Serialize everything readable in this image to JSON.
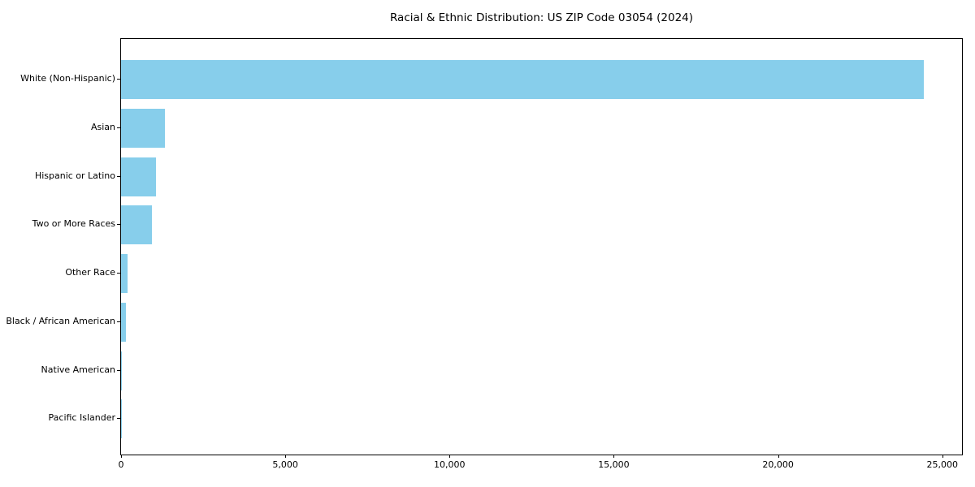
{
  "title": "Racial & Ethnic Distribution: US ZIP Code 03054 (2024)",
  "chart_data": {
    "type": "bar",
    "orientation": "horizontal",
    "title": "Racial & Ethnic Distribution: US ZIP Code 03054 (2024)",
    "categories": [
      "White (Non-Hispanic)",
      "Asian",
      "Hispanic or Latino",
      "Two or More Races",
      "Other Race",
      "Black / African American",
      "Native American",
      "Pacific Islander"
    ],
    "values": [
      24430,
      1330,
      1075,
      930,
      195,
      160,
      15,
      5
    ],
    "xlabel": "",
    "ylabel": "",
    "xlim": [
      0,
      25600
    ],
    "x_ticks": [
      0,
      5000,
      10000,
      15000,
      20000,
      25000
    ],
    "x_tick_labels": [
      "0",
      "5,000",
      "10,000",
      "15,000",
      "20,000",
      "25,000"
    ],
    "bar_color": "#87CEEB",
    "axis_color": "#000000",
    "background_color": "#ffffff",
    "grid": false,
    "legend": false
  }
}
